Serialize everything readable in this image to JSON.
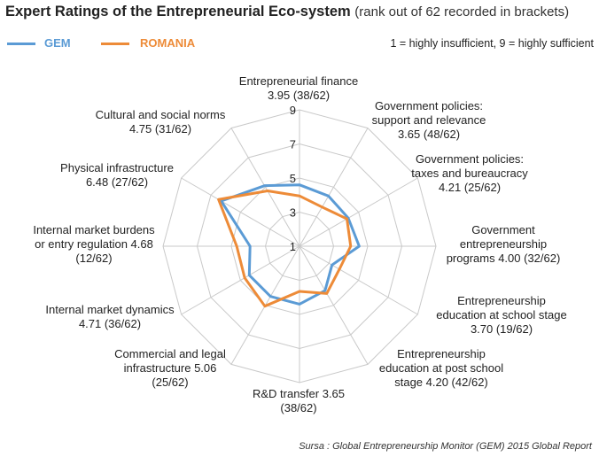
{
  "title": {
    "main": "Expert Ratings of the Entrepreneurial Eco-system",
    "sub": "(rank out of 62 recorded in brackets)"
  },
  "legend": {
    "items": [
      {
        "label": "GEM",
        "color": "#5b9bd5"
      },
      {
        "label": "ROMANIA",
        "color": "#ed8b38"
      }
    ],
    "scale_note": "1 = highly insufficient,  9 = highly sufficient"
  },
  "source": "Sursa : Global Entrepreneurship Monitor (GEM) 2015 Global Report",
  "chart_data": {
    "type": "radar",
    "title": "Expert Ratings of the Entrepreneurial Eco-system",
    "rlim": [
      1,
      9
    ],
    "ticks": [
      "1",
      "3",
      "5",
      "7",
      "9"
    ],
    "grid": true,
    "legend_position": "top-left",
    "axes": [
      {
        "lines": [
          "Entrepreneurial finance",
          "3.95 (38/62)"
        ]
      },
      {
        "lines": [
          "Government policies:",
          "support and relevance",
          "3.65 (48/62)"
        ]
      },
      {
        "lines": [
          "Government policies:",
          "taxes and bureaucracy",
          "4.21 (25/62)"
        ]
      },
      {
        "lines": [
          "Government",
          "entrepreneurship",
          "programs 4.00 (32/62)"
        ]
      },
      {
        "lines": [
          "Entrepreneurship",
          "education at school stage",
          "3.70 (19/62)"
        ]
      },
      {
        "lines": [
          "Entrepreneurship",
          "education at post school",
          "stage 4.20 (42/62)"
        ]
      },
      {
        "lines": [
          "R&D transfer 3.65",
          "(38/62)"
        ]
      },
      {
        "lines": [
          "Commercial and legal",
          "infrastructure 5.06",
          "(25/62)"
        ]
      },
      {
        "lines": [
          "Internal market dynamics",
          "4.71 (36/62)"
        ]
      },
      {
        "lines": [
          "Internal market burdens",
          "or entry regulation 4.68",
          "(12/62)"
        ]
      },
      {
        "lines": [
          "Physical infrastructure",
          "6.48 (27/62)"
        ]
      },
      {
        "lines": [
          "Cultural and social norms",
          "4.75 (31/62)"
        ]
      }
    ],
    "series": [
      {
        "name": "GEM",
        "color": "#5b9bd5",
        "values": [
          4.6,
          4.4,
          4.3,
          4.5,
          3.2,
          4.0,
          4.4,
          4.4,
          4.4,
          3.9,
          6.3,
          5.1
        ]
      },
      {
        "name": "ROMANIA",
        "color": "#ed8b38",
        "values": [
          3.95,
          3.65,
          4.21,
          4.0,
          3.7,
          4.2,
          3.65,
          5.06,
          4.71,
          4.68,
          6.48,
          4.75
        ]
      }
    ]
  }
}
